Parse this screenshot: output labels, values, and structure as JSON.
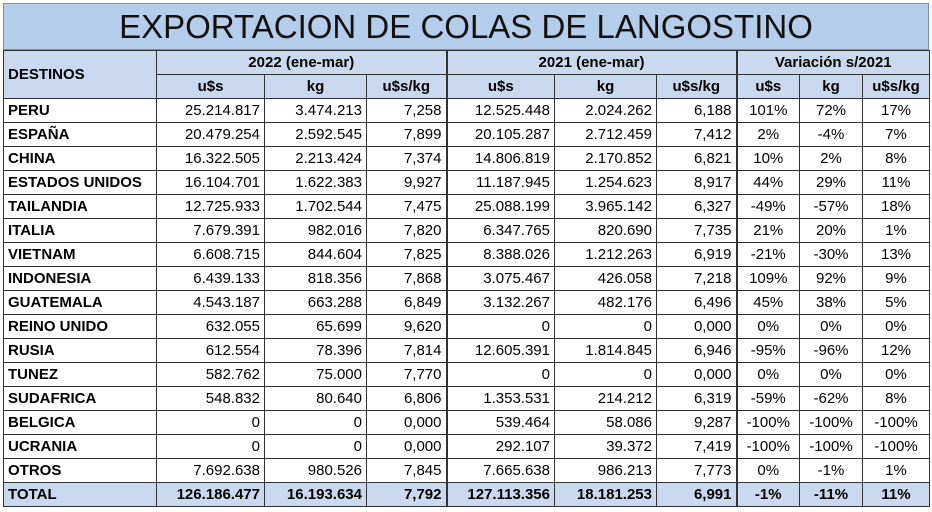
{
  "title": "EXPORTACION DE COLAS DE LANGOSTINO",
  "headers": {
    "destinos": "DESTINOS",
    "group_2022": "2022 (ene-mar)",
    "group_2021": "2021 (ene-mar)",
    "group_var": "Variación s/2021",
    "sub": [
      "u$s",
      "kg",
      "u$s/kg",
      "u$s",
      "kg",
      "u$s/kg",
      "u$s",
      "kg",
      "u$s/kg"
    ]
  },
  "rows": [
    [
      "PERU",
      "25.214.817",
      "3.474.213",
      "7,258",
      "12.525.448",
      "2.024.262",
      "6,188",
      "101%",
      "72%",
      "17%"
    ],
    [
      "ESPAÑA",
      "20.479.254",
      "2.592.545",
      "7,899",
      "20.105.287",
      "2.712.459",
      "7,412",
      "2%",
      "-4%",
      "7%"
    ],
    [
      "CHINA",
      "16.322.505",
      "2.213.424",
      "7,374",
      "14.806.819",
      "2.170.852",
      "6,821",
      "10%",
      "2%",
      "8%"
    ],
    [
      "ESTADOS UNIDOS",
      "16.104.701",
      "1.622.383",
      "9,927",
      "11.187.945",
      "1.254.623",
      "8,917",
      "44%",
      "29%",
      "11%"
    ],
    [
      "TAILANDIA",
      "12.725.933",
      "1.702.544",
      "7,475",
      "25.088.199",
      "3.965.142",
      "6,327",
      "-49%",
      "-57%",
      "18%"
    ],
    [
      "ITALIA",
      "7.679.391",
      "982.016",
      "7,820",
      "6.347.765",
      "820.690",
      "7,735",
      "21%",
      "20%",
      "1%"
    ],
    [
      "VIETNAM",
      "6.608.715",
      "844.604",
      "7,825",
      "8.388.026",
      "1.212.263",
      "6,919",
      "-21%",
      "-30%",
      "13%"
    ],
    [
      "INDONESIA",
      "6.439.133",
      "818.356",
      "7,868",
      "3.075.467",
      "426.058",
      "7,218",
      "109%",
      "92%",
      "9%"
    ],
    [
      "GUATEMALA",
      "4.543.187",
      "663.288",
      "6,849",
      "3.132.267",
      "482.176",
      "6,496",
      "45%",
      "38%",
      "5%"
    ],
    [
      "REINO UNIDO",
      "632.055",
      "65.699",
      "9,620",
      "0",
      "0",
      "0,000",
      "0%",
      "0%",
      "0%"
    ],
    [
      "RUSIA",
      "612.554",
      "78.396",
      "7,814",
      "12.605.391",
      "1.814.845",
      "6,946",
      "-95%",
      "-96%",
      "12%"
    ],
    [
      "TUNEZ",
      "582.762",
      "75.000",
      "7,770",
      "0",
      "0",
      "0,000",
      "0%",
      "0%",
      "0%"
    ],
    [
      "SUDAFRICA",
      "548.832",
      "80.640",
      "6,806",
      "1.353.531",
      "214.212",
      "6,319",
      "-59%",
      "-62%",
      "8%"
    ],
    [
      "BELGICA",
      "0",
      "0",
      "0,000",
      "539.464",
      "58.086",
      "9,287",
      "-100%",
      "-100%",
      "-100%"
    ],
    [
      "UCRANIA",
      "0",
      "0",
      "0,000",
      "292.107",
      "39.372",
      "7,419",
      "-100%",
      "-100%",
      "-100%"
    ],
    [
      "OTROS",
      "7.692.638",
      "980.526",
      "7,845",
      "7.665.638",
      "986.213",
      "7,773",
      "0%",
      "-1%",
      "1%"
    ]
  ],
  "total": [
    "TOTAL",
    "126.186.477",
    "16.193.634",
    "7,792",
    "127.113.356",
    "18.181.253",
    "6,991",
    "-1%",
    "-11%",
    "11%"
  ]
}
